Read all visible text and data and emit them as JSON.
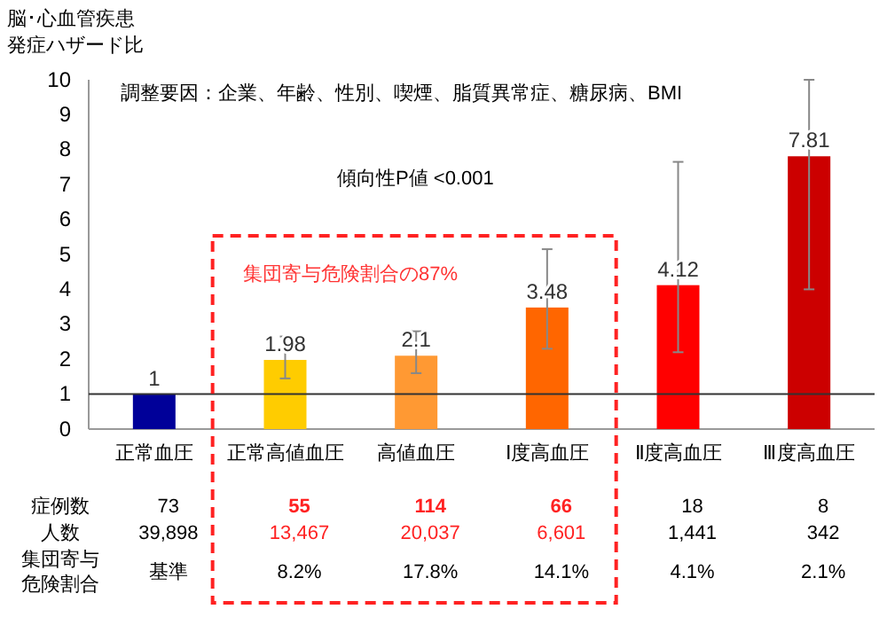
{
  "chart_data": {
    "type": "bar",
    "ylabel": "脳･心血管疾患発症ハザード比",
    "categories": [
      "正常血圧",
      "正常高値血圧",
      "高値血圧",
      "Ⅰ度高血圧",
      "Ⅱ度高血圧",
      "Ⅲ度高血圧"
    ],
    "values": [
      1,
      1.98,
      2.1,
      3.48,
      4.12,
      7.81
    ],
    "colors": [
      "#000099",
      "#ffcc00",
      "#ff9933",
      "#ff6600",
      "#ff0000",
      "#cc0000"
    ],
    "errors": [
      null,
      [
        1.45,
        2.65
      ],
      [
        1.6,
        2.8
      ],
      [
        2.3,
        5.15
      ],
      [
        2.2,
        7.65
      ],
      [
        4.0,
        10
      ]
    ],
    "data_labels": true,
    "ylim": [
      0,
      10
    ],
    "yticks": [
      0,
      1,
      2,
      3,
      4,
      5,
      6,
      7,
      8,
      9,
      10
    ],
    "ref_lines": [
      {
        "axis": "y",
        "value": 1,
        "color": "#333333"
      }
    ],
    "annotations": [
      "調整要因：企業、年齢、性別、喫煙、脂質異常症、糖尿病、BMI",
      "傾向性P値 <0.001",
      "集団寄与危険割合の87%",
      "症例数",
      "73",
      "55",
      "114",
      "66",
      "18",
      "8",
      "人数",
      "39,898",
      "13,467",
      "20,037",
      "6,601",
      "1,441",
      "342",
      "集団寄与危険割合",
      "基準",
      "8.2%",
      "17.8%",
      "14.1%",
      "4.1%",
      "2.1%"
    ]
  }
}
